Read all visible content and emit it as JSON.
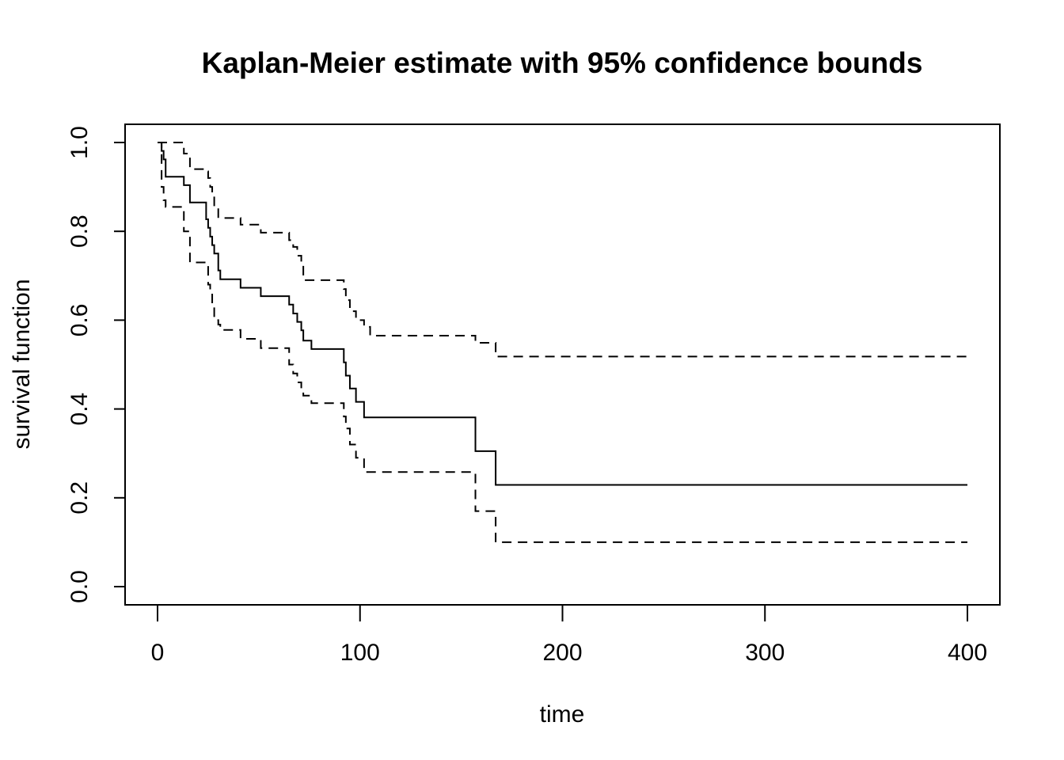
{
  "chart_data": {
    "type": "line",
    "title": "Kaplan-Meier estimate with 95% confidence bounds",
    "xlabel": "time",
    "ylabel": "survival function",
    "xlim": [
      0,
      400
    ],
    "ylim": [
      0,
      1
    ],
    "xticks": [
      0,
      100,
      200,
      300,
      400
    ],
    "yticks": [
      0.0,
      0.2,
      0.4,
      0.6,
      0.8,
      1.0
    ],
    "ytick_labels": [
      "0.0",
      "0.2",
      "0.4",
      "0.6",
      "0.8",
      "1.0"
    ],
    "xtick_labels": [
      "0",
      "100",
      "200",
      "300",
      "400"
    ],
    "grid": false,
    "step": true,
    "series": [
      {
        "style": "solid",
        "x": [
          0,
          2,
          3,
          4,
          13,
          16,
          24,
          25,
          26,
          27,
          28,
          30,
          31,
          41,
          51,
          65,
          67,
          69,
          71,
          72,
          76,
          92,
          93,
          95,
          98,
          102,
          105,
          157,
          167,
          400
        ],
        "y": [
          1.0,
          0.981,
          0.962,
          0.923,
          0.904,
          0.865,
          0.827,
          0.808,
          0.788,
          0.769,
          0.75,
          0.712,
          0.692,
          0.673,
          0.654,
          0.635,
          0.615,
          0.596,
          0.577,
          0.554,
          0.535,
          0.505,
          0.475,
          0.446,
          0.416,
          0.381,
          0.381,
          0.305,
          0.229,
          0.229
        ]
      },
      {
        "style": "dashed",
        "x": [
          0,
          2,
          3,
          4,
          13,
          16,
          24,
          25,
          26,
          27,
          28,
          30,
          31,
          41,
          51,
          65,
          67,
          69,
          71,
          72,
          76,
          92,
          93,
          95,
          98,
          102,
          105,
          157,
          167,
          400
        ],
        "y": [
          1.0,
          1.0,
          1.0,
          1.0,
          0.975,
          0.94,
          0.935,
          0.92,
          0.9,
          0.88,
          0.855,
          0.83,
          0.83,
          0.815,
          0.797,
          0.78,
          0.765,
          0.745,
          0.725,
          0.69,
          0.69,
          0.67,
          0.645,
          0.62,
          0.6,
          0.585,
          0.565,
          0.549,
          0.518,
          0.518
        ]
      },
      {
        "style": "dashed",
        "x": [
          0,
          2,
          3,
          4,
          13,
          16,
          24,
          25,
          26,
          27,
          28,
          30,
          31,
          41,
          51,
          65,
          67,
          69,
          71,
          72,
          76,
          92,
          93,
          95,
          98,
          102,
          105,
          157,
          167,
          400
        ],
        "y": [
          1.0,
          0.9,
          0.87,
          0.855,
          0.8,
          0.73,
          0.73,
          0.68,
          0.66,
          0.64,
          0.6,
          0.59,
          0.578,
          0.558,
          0.537,
          0.5,
          0.48,
          0.46,
          0.44,
          0.43,
          0.413,
          0.383,
          0.356,
          0.32,
          0.29,
          0.258,
          0.258,
          0.17,
          0.1,
          0.1
        ]
      }
    ]
  }
}
